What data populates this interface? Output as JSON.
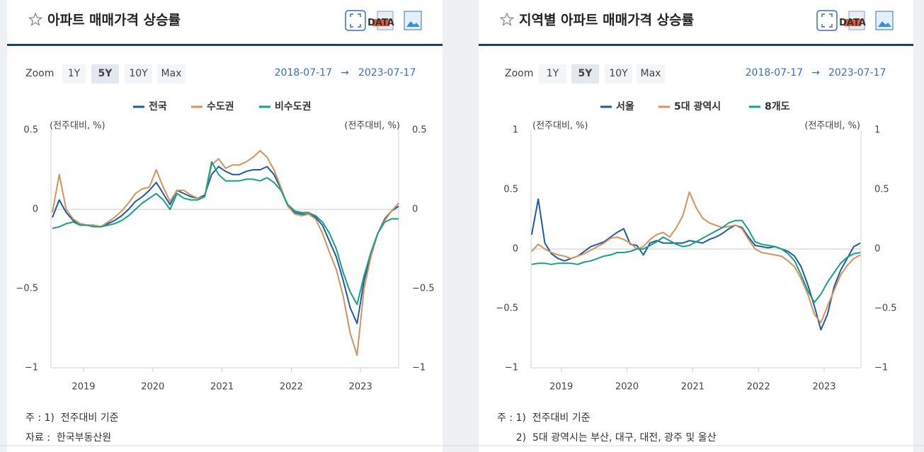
{
  "chart_data": [
    {
      "type": "line",
      "title": "아파트 매매가격 상승률",
      "y_label": "(전주대비, %)",
      "y2_label": "(전주대비, %)",
      "x": [
        2018.55,
        2018.65,
        2018.75,
        2018.85,
        2018.95,
        2019.05,
        2019.15,
        2019.25,
        2019.35,
        2019.45,
        2019.55,
        2019.65,
        2019.75,
        2019.85,
        2019.95,
        2020.05,
        2020.15,
        2020.25,
        2020.35,
        2020.45,
        2020.55,
        2020.65,
        2020.75,
        2020.85,
        2020.95,
        2021.05,
        2021.15,
        2021.25,
        2021.35,
        2021.45,
        2021.55,
        2021.65,
        2021.75,
        2021.85,
        2021.95,
        2022.05,
        2022.15,
        2022.25,
        2022.35,
        2022.45,
        2022.55,
        2022.65,
        2022.75,
        2022.85,
        2022.95,
        2023.05,
        2023.15,
        2023.25,
        2023.35,
        2023.45,
        2023.55
      ],
      "series": [
        {
          "name": "전국",
          "color": "#1f5aa6",
          "values": [
            -0.05,
            0.06,
            -0.02,
            -0.07,
            -0.09,
            -0.1,
            -0.1,
            -0.11,
            -0.09,
            -0.07,
            -0.04,
            0.0,
            0.05,
            0.08,
            0.12,
            0.17,
            0.1,
            0.03,
            0.12,
            0.1,
            0.08,
            0.07,
            0.09,
            0.22,
            0.27,
            0.24,
            0.22,
            0.22,
            0.24,
            0.25,
            0.25,
            0.27,
            0.22,
            0.13,
            0.02,
            -0.02,
            -0.03,
            -0.03,
            -0.05,
            -0.1,
            -0.2,
            -0.3,
            -0.45,
            -0.62,
            -0.72,
            -0.45,
            -0.28,
            -0.15,
            -0.06,
            -0.01,
            0.02
          ]
        },
        {
          "name": "수도권",
          "color": "#d4935a",
          "values": [
            -0.02,
            0.22,
            0.0,
            -0.06,
            -0.09,
            -0.1,
            -0.1,
            -0.11,
            -0.08,
            -0.05,
            -0.01,
            0.04,
            0.1,
            0.13,
            0.14,
            0.25,
            0.14,
            0.05,
            0.12,
            0.12,
            0.09,
            0.07,
            0.08,
            0.28,
            0.32,
            0.26,
            0.28,
            0.28,
            0.3,
            0.33,
            0.37,
            0.33,
            0.25,
            0.14,
            0.02,
            -0.03,
            -0.04,
            -0.03,
            -0.06,
            -0.15,
            -0.27,
            -0.38,
            -0.55,
            -0.78,
            -0.92,
            -0.5,
            -0.3,
            -0.15,
            -0.07,
            -0.01,
            0.04
          ]
        },
        {
          "name": "비수도권",
          "color": "#16a085",
          "values": [
            -0.12,
            -0.11,
            -0.09,
            -0.08,
            -0.1,
            -0.1,
            -0.11,
            -0.11,
            -0.1,
            -0.09,
            -0.07,
            -0.04,
            0.0,
            0.04,
            0.07,
            0.1,
            0.06,
            0.0,
            0.1,
            0.07,
            0.06,
            0.06,
            0.08,
            0.3,
            0.22,
            0.18,
            0.18,
            0.18,
            0.19,
            0.19,
            0.18,
            0.2,
            0.17,
            0.12,
            0.03,
            -0.01,
            -0.02,
            -0.02,
            -0.04,
            -0.08,
            -0.15,
            -0.25,
            -0.4,
            -0.52,
            -0.6,
            -0.42,
            -0.27,
            -0.15,
            -0.08,
            -0.06,
            -0.06
          ]
        }
      ],
      "xlim": [
        2018.53,
        2023.55
      ],
      "xticks": [
        2019,
        2020,
        2021,
        2022,
        2023
      ],
      "ylim": [
        -1,
        0.5
      ],
      "yticks": [
        0.5,
        0,
        {
          "value": -0.5,
          "label": "−0.5"
        },
        {
          "value": -1,
          "label": "−1"
        }
      ],
      "y2lim": [
        -1,
        0.5
      ],
      "y2ticks": [
        0.5,
        0,
        {
          "value": -0.5,
          "label": "−0.5"
        },
        {
          "value": -1,
          "label": "−1"
        }
      ],
      "grid": false,
      "zero_line": true,
      "legend": "top"
    },
    {
      "type": "line",
      "title": "지역별 아파트 매매가격 상승률",
      "y_label": "(전주대비, %)",
      "y2_label": "(전주대비, %)",
      "x": [
        2018.55,
        2018.65,
        2018.75,
        2018.85,
        2018.95,
        2019.05,
        2019.15,
        2019.25,
        2019.35,
        2019.45,
        2019.55,
        2019.65,
        2019.75,
        2019.85,
        2019.95,
        2020.05,
        2020.15,
        2020.25,
        2020.35,
        2020.45,
        2020.55,
        2020.65,
        2020.75,
        2020.85,
        2020.95,
        2021.05,
        2021.15,
        2021.25,
        2021.35,
        2021.45,
        2021.55,
        2021.65,
        2021.75,
        2021.85,
        2021.95,
        2022.05,
        2022.15,
        2022.25,
        2022.35,
        2022.45,
        2022.55,
        2022.65,
        2022.75,
        2022.85,
        2022.95,
        2023.05,
        2023.15,
        2023.25,
        2023.35,
        2023.45,
        2023.55
      ],
      "series": [
        {
          "name": "서울",
          "color": "#1f5aa6",
          "values": [
            0.12,
            0.42,
            0.05,
            -0.04,
            -0.08,
            -0.1,
            -0.08,
            -0.06,
            -0.02,
            0.02,
            0.04,
            0.06,
            0.1,
            0.14,
            0.17,
            0.04,
            0.03,
            -0.05,
            0.05,
            0.07,
            0.05,
            0.05,
            0.05,
            0.05,
            0.07,
            0.06,
            0.05,
            0.08,
            0.1,
            0.13,
            0.17,
            0.2,
            0.18,
            0.1,
            0.03,
            0.02,
            0.01,
            0.02,
            0.0,
            -0.02,
            -0.06,
            -0.15,
            -0.3,
            -0.48,
            -0.68,
            -0.55,
            -0.32,
            -0.18,
            -0.08,
            0.02,
            0.05
          ]
        },
        {
          "name": "5대 광역시",
          "color": "#d4935a",
          "values": [
            -0.02,
            0.04,
            0.0,
            -0.03,
            -0.05,
            -0.06,
            -0.08,
            -0.06,
            -0.04,
            -0.01,
            0.02,
            0.05,
            0.09,
            0.1,
            0.08,
            0.05,
            0.0,
            0.02,
            0.08,
            0.12,
            0.14,
            0.1,
            0.18,
            0.28,
            0.48,
            0.35,
            0.26,
            0.22,
            0.2,
            0.18,
            0.19,
            0.2,
            0.17,
            0.08,
            0.0,
            -0.03,
            -0.04,
            -0.05,
            -0.06,
            -0.1,
            -0.15,
            -0.25,
            -0.38,
            -0.55,
            -0.62,
            -0.48,
            -0.35,
            -0.22,
            -0.14,
            -0.08,
            -0.05
          ]
        },
        {
          "name": "8개도",
          "color": "#16a085",
          "values": [
            -0.13,
            -0.12,
            -0.12,
            -0.13,
            -0.12,
            -0.12,
            -0.12,
            -0.13,
            -0.11,
            -0.1,
            -0.08,
            -0.06,
            -0.05,
            -0.03,
            -0.03,
            -0.02,
            0.0,
            0.0,
            0.03,
            0.06,
            0.1,
            0.07,
            0.04,
            0.02,
            0.03,
            0.06,
            0.09,
            0.12,
            0.15,
            0.18,
            0.22,
            0.24,
            0.24,
            0.16,
            0.06,
            0.04,
            0.03,
            0.02,
            0.0,
            -0.04,
            -0.1,
            -0.22,
            -0.35,
            -0.45,
            -0.38,
            -0.28,
            -0.2,
            -0.12,
            -0.07,
            -0.04,
            -0.03
          ]
        }
      ],
      "xlim": [
        2018.54,
        2023.56
      ],
      "xticks": [
        2019,
        2020,
        2021,
        2022,
        2023
      ],
      "ylim": [
        -1,
        1
      ],
      "yticks": [
        1,
        0.5,
        0,
        {
          "value": -0.5,
          "label": "−0.5"
        },
        {
          "value": -1,
          "label": "−1"
        }
      ],
      "y2lim": [
        -1,
        1
      ],
      "y2ticks": [
        1,
        0.5,
        0,
        {
          "value": -0.5,
          "label": "−0.5"
        },
        {
          "value": -1,
          "label": "−1"
        }
      ],
      "grid": false,
      "zero_line": true,
      "legend": "top"
    }
  ],
  "panels": [
    {
      "zoom_label": "Zoom",
      "zoom_options": [
        "1Y",
        "5Y",
        "10Y",
        "Max"
      ],
      "zoom_selected": "5Y",
      "date_from": "2018-07-17",
      "date_arrow": "→",
      "date_to": "2023-07-17",
      "data_icon_label": "DATA",
      "notes": [
        "주 : 1)  전주대비 기준",
        "자료 :  한국부동산원"
      ]
    },
    {
      "zoom_label": "Zoom",
      "zoom_options": [
        "1Y",
        "5Y",
        "10Y",
        "Max"
      ],
      "zoom_selected": "5Y",
      "date_from": "2018-07-17",
      "date_arrow": "→",
      "date_to": "2023-07-17",
      "data_icon_label": "DATA",
      "notes": [
        "주 : 1)  전주대비 기준",
        "      2)  5대 광역시는 부산, 대구, 대전, 광주 및 울산"
      ]
    }
  ]
}
